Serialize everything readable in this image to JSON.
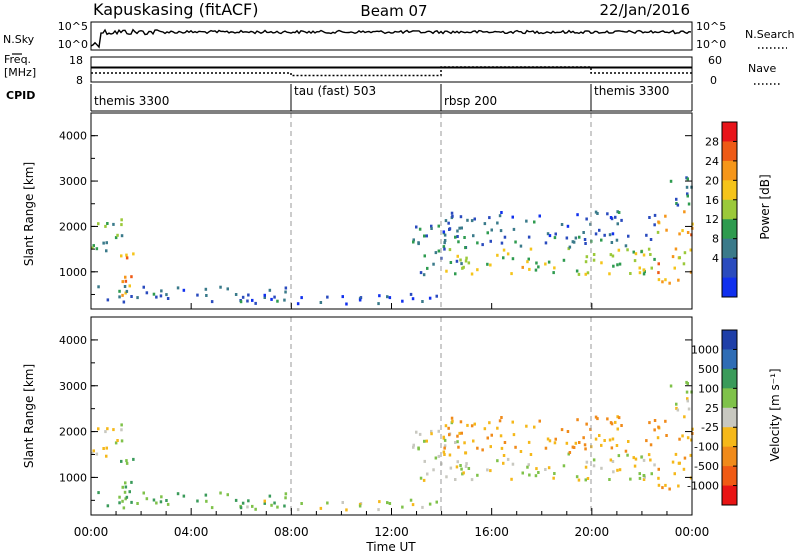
{
  "header": {
    "station": "Kapuskasing (fitACF)",
    "beam": "Beam 07",
    "date": "22/Jan/2016"
  },
  "noise_panel": {
    "left_label": "N.Sky",
    "right_label": "N.Search",
    "left_ticks": [
      "10^5",
      "10^0"
    ],
    "right_ticks": [
      "10^5",
      "10^0"
    ]
  },
  "freq_panel": {
    "left_label": "Freq.",
    "left_unit": "[MHz]",
    "left_ticks": [
      "18",
      "8"
    ],
    "right_label": "Nave",
    "right_ticks": [
      "60",
      "0"
    ],
    "cpid_label": "CPID"
  },
  "cpid_segments": [
    {
      "name": "themis 3300",
      "start": 0,
      "end": 8
    },
    {
      "name": "tau (fast) 503",
      "start": 8,
      "end": 14
    },
    {
      "name": "rbsp 200",
      "start": 14,
      "end": 20
    },
    {
      "name": "themis 3300",
      "start": 20,
      "end": 24
    }
  ],
  "power_panel": {
    "ylabel": "Slant Range [km]",
    "yticks": [
      "4000",
      "3000",
      "2000",
      "1000"
    ],
    "colorbar_label": "Power [dB]",
    "colorbar_ticks": [
      "28",
      "24",
      "20",
      "16",
      "12",
      "8",
      "4"
    ],
    "colorbar_colors": [
      "#e8141a",
      "#ee5a16",
      "#f5961a",
      "#f5c41a",
      "#9bc93a",
      "#2e9b4f",
      "#3a7a8a",
      "#2a4bbe",
      "#1030ee"
    ]
  },
  "velocity_panel": {
    "ylabel": "Slant Range [km]",
    "yticks": [
      "4000",
      "3000",
      "2000",
      "1000"
    ],
    "colorbar_label": "Velocity [m s⁻¹]",
    "colorbar_ticks": [
      "1000",
      "500",
      "100",
      "25",
      "-25",
      "-100",
      "-500",
      "-1000"
    ],
    "colorbar_colors": [
      "#1f3fa8",
      "#2f6db5",
      "#3a9b5a",
      "#7fc24a",
      "#c8c8c0",
      "#f5b81a",
      "#f08a1a",
      "#f05a14",
      "#e81414"
    ]
  },
  "x_axis": {
    "label": "Time UT",
    "ticks": [
      "00:00",
      "04:00",
      "08:00",
      "12:00",
      "16:00",
      "20:00",
      "00:00"
    ]
  },
  "chart_data": {
    "type": "heatmap",
    "x_range_hours_ut": [
      0,
      24
    ],
    "y_range_km": [
      180,
      4500
    ],
    "panels": [
      "Power [dB]",
      "Velocity [m s⁻¹]"
    ],
    "scatter_regions": [
      {
        "t": [
          0.0,
          1.2
        ],
        "r": [
          1400,
          2300
        ],
        "power": 14,
        "velocity": -25
      },
      {
        "t": [
          1.0,
          1.7
        ],
        "r": [
          350,
          1400
        ],
        "power": 24,
        "velocity": 100
      },
      {
        "t": [
          0.0,
          8.0
        ],
        "r": [
          300,
          650
        ],
        "power": 8,
        "velocity": 100
      },
      {
        "t": [
          6.0,
          14.0
        ],
        "r": [
          250,
          500
        ],
        "power": 6,
        "velocity": 25
      },
      {
        "t": [
          12.8,
          14.8
        ],
        "r": [
          900,
          2200
        ],
        "power": 10,
        "velocity": 0
      },
      {
        "t": [
          14.0,
          22.5
        ],
        "r": [
          900,
          1500
        ],
        "power": 18,
        "velocity": 0
      },
      {
        "t": [
          14.0,
          22.5
        ],
        "r": [
          1500,
          2300
        ],
        "power": 8,
        "velocity": -100
      },
      {
        "t": [
          22.5,
          24.0
        ],
        "r": [
          600,
          2300
        ],
        "power": 22,
        "velocity": -100
      },
      {
        "t": [
          23.0,
          24.0
        ],
        "r": [
          2400,
          3200
        ],
        "power": 10,
        "velocity": 25
      }
    ]
  }
}
